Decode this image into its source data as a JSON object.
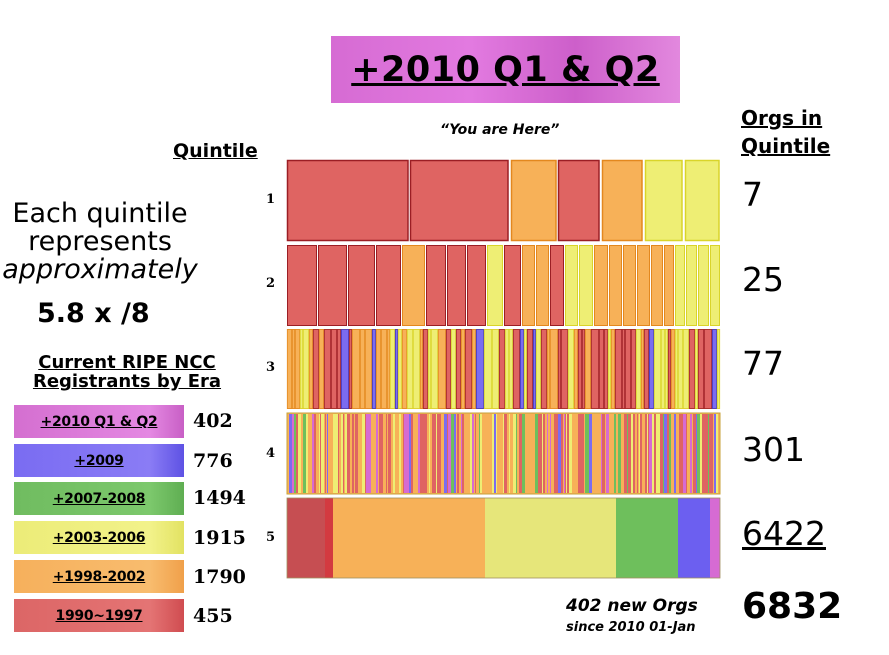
{
  "title": "+2010 Q1 & Q2",
  "quintile_header": "Quintile",
  "orgs_header": [
    "Orgs in",
    "Quintile"
  ],
  "you_are_here": "“You are Here”",
  "description": {
    "line1": "Each quintile",
    "line2": "represents",
    "line3": "approximately",
    "size": "5.8 x /8"
  },
  "era_header": [
    "Current RIPE NCC",
    "Registrants by Era"
  ],
  "colors": {
    "e2010": "#d66bd3",
    "e2009": "#7b6cf0",
    "e2007": "#6ebf5c",
    "e2003": "#eeee74",
    "e1998": "#f7b158",
    "e1990": "#df6462"
  },
  "eras": [
    {
      "label": "+2010 Q1 & Q2",
      "count": "402",
      "color": "#d46fd0"
    },
    {
      "label": "+2009",
      "count": "776",
      "color": "#7a6cf2"
    },
    {
      "label": "+2007-2008",
      "count": "1494",
      "color": "#70bc60"
    },
    {
      "label": "+2003-2006",
      "count": "1915",
      "color": "#ecec78"
    },
    {
      "label": "+1998-2002",
      "count": "1790",
      "color": "#f6b05c"
    },
    {
      "label": "1990~1997",
      "count": "455",
      "color": "#dc6666"
    }
  ],
  "quintiles": [
    {
      "label": "1",
      "count": "7"
    },
    {
      "label": "2",
      "count": "25"
    },
    {
      "label": "3",
      "count": "77"
    },
    {
      "label": "4",
      "count": "301"
    },
    {
      "label": "5",
      "count": "6422"
    }
  ],
  "total": "6832",
  "footer": {
    "line1": "402 new Orgs",
    "line2": "since 2010 01-Jan"
  }
}
